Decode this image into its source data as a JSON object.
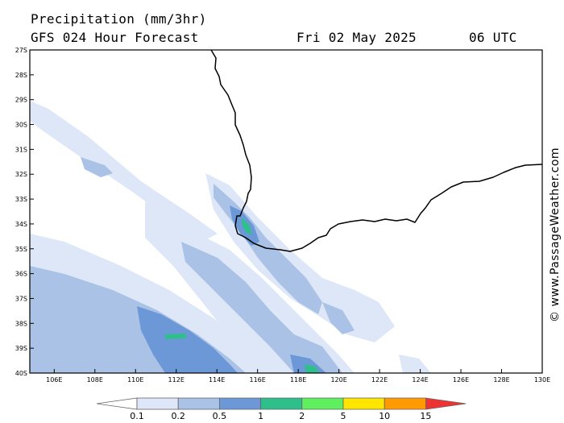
{
  "header": {
    "title": "Precipitation (mm/3hr)",
    "model": "GFS 024 Hour Forecast",
    "date": "Fri 02 May 2025",
    "time": "06 UTC"
  },
  "credit": "© www.PassageWeather.com",
  "map": {
    "lat_labels": [
      "27S",
      "28S",
      "29S",
      "30S",
      "31S",
      "32S",
      "33S",
      "34S",
      "35S",
      "36S",
      "37S",
      "38S",
      "39S",
      "40S"
    ],
    "lon_labels": [
      "106E",
      "108E",
      "110E",
      "112E",
      "114E",
      "116E",
      "118E",
      "120E",
      "122E",
      "124E",
      "126E",
      "128E",
      "130E"
    ],
    "lat_range": [
      -40,
      -27
    ],
    "lon_range": [
      104.8,
      130
    ]
  },
  "legend": {
    "levels": [
      "0.1",
      "0.2",
      "0.5",
      "1",
      "2",
      "5",
      "10",
      "15"
    ],
    "colors": [
      "#ffffff",
      "#dde7f7",
      "#a9c2e6",
      "#6c98d8",
      "#2fbf8a",
      "#5fef5f",
      "#ffe600",
      "#ff9a00",
      "#ee3333"
    ]
  }
}
